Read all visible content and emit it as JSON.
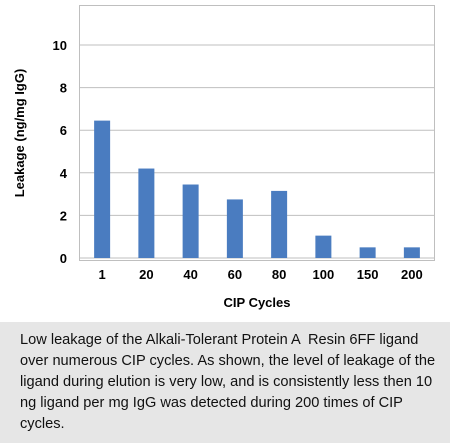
{
  "chart_data": {
    "type": "bar",
    "categories": [
      "1",
      "20",
      "40",
      "60",
      "80",
      "100",
      "150",
      "200"
    ],
    "values": [
      6.45,
      4.2,
      3.45,
      2.75,
      3.15,
      1.05,
      0.5,
      0.5
    ],
    "title": "",
    "xlabel": "CIP Cycles",
    "ylabel": "Leakage (ng/mg IgG)",
    "ylim": [
      0,
      10
    ],
    "yticks": [
      "0",
      "2",
      "4",
      "6",
      "8",
      "10"
    ],
    "grid": true,
    "bar_color": "#4a7cc0"
  },
  "caption": "Low leakage of the Alkali-Tolerant Protein A  Resin 6FF ligand over numerous CIP cycles. As shown, the level of leakage of the ligand during elution is very low, and is consistently less then 10 ng ligand per mg IgG was detected during 200 times of CIP cycles."
}
